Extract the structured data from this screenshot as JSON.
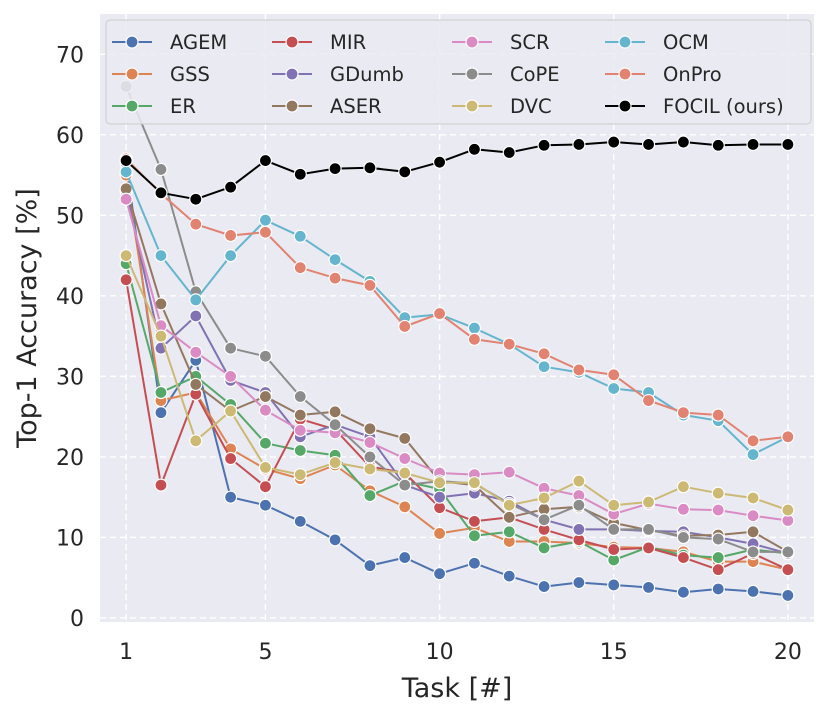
{
  "chart_data": {
    "type": "line",
    "title": "",
    "xlabel": "Task [#]",
    "ylabel": "Top-1 Accuracy [%]",
    "xlim": [
      0.25,
      20.75
    ],
    "ylim": [
      -0.5,
      75
    ],
    "xticks": [
      1,
      5,
      10,
      15,
      20
    ],
    "yticks": [
      0,
      10,
      20,
      30,
      40,
      50,
      60,
      70
    ],
    "grid": true,
    "legend_position": "top",
    "legend_columns": 4,
    "x": [
      1,
      2,
      3,
      4,
      5,
      6,
      7,
      8,
      9,
      10,
      11,
      12,
      13,
      14,
      15,
      16,
      17,
      18,
      19,
      20
    ],
    "series": [
      {
        "name": "AGEM",
        "color": "#4c72b0",
        "values": [
          56.5,
          25.5,
          32,
          15,
          14,
          12,
          9.7,
          6.5,
          7.5,
          5.5,
          6.8,
          5.2,
          3.9,
          4.4,
          4.1,
          3.8,
          3.2,
          3.6,
          3.3,
          2.8
        ]
      },
      {
        "name": "GSS",
        "color": "#dd8452",
        "values": [
          55,
          27,
          28,
          21,
          18.5,
          17.3,
          19,
          15.8,
          13.8,
          10.5,
          11.2,
          9.5,
          9.5,
          9.3,
          8.8,
          8.7,
          8.2,
          7,
          7,
          6
        ]
      },
      {
        "name": "ER",
        "color": "#55a868",
        "values": [
          44,
          28,
          30,
          26.5,
          21.7,
          20.8,
          20.2,
          15.2,
          17,
          16,
          10.2,
          10.7,
          8.7,
          9.5,
          7.2,
          8.8,
          7.8,
          7.5,
          8.5,
          8
        ]
      },
      {
        "name": "MIR",
        "color": "#c44e52",
        "values": [
          42,
          16.5,
          27.8,
          19.8,
          16.3,
          24.7,
          23.4,
          18.8,
          18,
          13.7,
          12,
          12.5,
          11,
          9.7,
          8.5,
          8.7,
          7.5,
          6,
          8,
          6
        ]
      },
      {
        "name": "GDumb",
        "color": "#8172b3",
        "values": [
          53,
          33.5,
          37.5,
          29.5,
          28,
          22.5,
          24,
          22.5,
          16.5,
          15,
          15.5,
          14.5,
          12.2,
          11,
          11,
          10.8,
          10.7,
          10,
          9.2,
          8
        ]
      },
      {
        "name": "ASER",
        "color": "#937860",
        "values": [
          53.3,
          39,
          29,
          25.7,
          27.5,
          25.2,
          25.6,
          23.5,
          22.3,
          17,
          16.5,
          12.5,
          13.5,
          13.8,
          11.8,
          10.9,
          10.2,
          10.3,
          10.7,
          8.2
        ]
      },
      {
        "name": "SCR",
        "color": "#da8bc3",
        "values": [
          52,
          36.3,
          33,
          30,
          25.8,
          23.3,
          23,
          21.8,
          19.8,
          18,
          17.8,
          18.1,
          16.1,
          15.2,
          12.9,
          14.2,
          13.5,
          13.4,
          12.7,
          12.1
        ]
      },
      {
        "name": "CoPE",
        "color": "#8c8c8c",
        "values": [
          66,
          55.7,
          40.5,
          33.5,
          32.5,
          27.5,
          24,
          20,
          16.5,
          17,
          16.7,
          14.2,
          12.2,
          14,
          11,
          11,
          10,
          9.8,
          8.2,
          8.2
        ]
      },
      {
        "name": "DVC",
        "color": "#ccb974",
        "values": [
          45,
          35,
          22,
          25.7,
          18.7,
          17.8,
          19.3,
          18.5,
          18,
          16.8,
          16.8,
          14,
          14.9,
          17,
          14,
          14.4,
          16.3,
          15.5,
          14.9,
          13.4
        ]
      },
      {
        "name": "OCM",
        "color": "#64b5cd",
        "values": [
          55.4,
          45,
          39.5,
          45,
          49.4,
          47.4,
          44.5,
          41.8,
          37.3,
          37.7,
          36,
          34,
          31.2,
          30.5,
          28.5,
          28,
          25.2,
          24.5,
          20.3,
          22.5
        ]
      },
      {
        "name": "OnPro",
        "color": "#e28271",
        "values": [
          57,
          52.7,
          48.9,
          47.5,
          47.9,
          43.5,
          42.2,
          41.3,
          36.2,
          37.8,
          34.6,
          34,
          32.8,
          30.8,
          30.2,
          27,
          25.5,
          25.2,
          22,
          22.5
        ]
      },
      {
        "name": "FOCIL (ours)",
        "color": "#000000",
        "values": [
          56.8,
          52.8,
          52,
          53.5,
          56.8,
          55.1,
          55.8,
          55.9,
          55.4,
          56.6,
          58.2,
          57.8,
          58.7,
          58.8,
          59.1,
          58.8,
          59.1,
          58.7,
          58.8,
          58.8
        ]
      }
    ]
  }
}
